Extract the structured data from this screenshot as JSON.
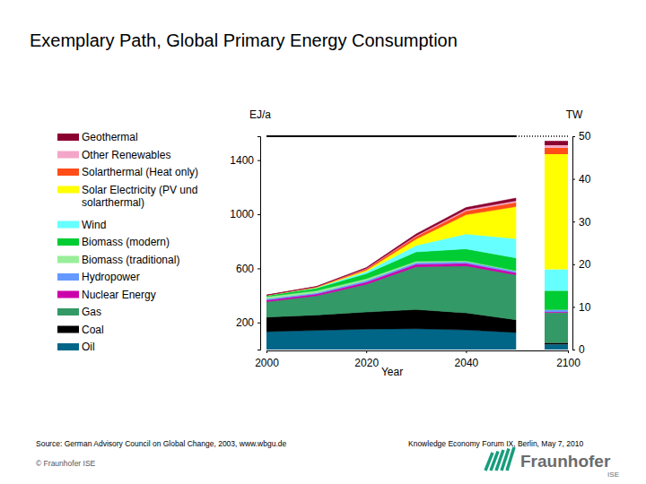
{
  "chart_data": {
    "type": "area",
    "stacked": true,
    "title": "Exemplary Path, Global Primary Energy Consumption",
    "y_label": "EJ/a",
    "y2_label": "TW",
    "x_label": "Year",
    "legend": "left",
    "grid": false,
    "x": [
      2000,
      2010,
      2020,
      2030,
      2040,
      2050,
      2100
    ],
    "xlim": [
      2000,
      2100
    ],
    "xticks": [
      2000,
      2020,
      2040,
      2100
    ],
    "ylim": [
      0,
      1576.8
    ],
    "yticks": [
      200,
      600,
      1000,
      1400
    ],
    "y2lim": [
      0,
      50
    ],
    "y2ticks": [
      0,
      10,
      20,
      30,
      40,
      50
    ],
    "series": [
      {
        "name": "Oil",
        "color": "#006688",
        "axis": "y2",
        "values": [
          4.2,
          4.5,
          4.8,
          4.9,
          4.6,
          4.0,
          1.2
        ]
      },
      {
        "name": "Coal",
        "color": "#000000",
        "axis": "y2",
        "values": [
          3.4,
          3.6,
          4.0,
          4.5,
          4.0,
          3.0,
          0.4
        ]
      },
      {
        "name": "Gas",
        "color": "#339966",
        "axis": "y2",
        "values": [
          3.6,
          4.5,
          6.5,
          10.0,
          11.0,
          10.5,
          7.0
        ]
      },
      {
        "name": "Nuclear Energy",
        "color": "#cc00aa",
        "axis": "y2",
        "values": [
          0.4,
          0.4,
          0.5,
          0.6,
          0.6,
          0.5,
          0.2
        ]
      },
      {
        "name": "Hydropower",
        "color": "#6699ff",
        "axis": "y2",
        "values": [
          0.3,
          0.3,
          0.4,
          0.4,
          0.4,
          0.4,
          0.5
        ]
      },
      {
        "name": "Biomass (traditional)",
        "color": "#99ee99",
        "axis": "y2",
        "values": [
          0.5,
          0.5,
          0.4,
          0.3,
          0.2,
          0.1,
          0
        ]
      },
      {
        "name": "Biomass (modern)",
        "color": "#00cc33",
        "axis": "y2",
        "values": [
          0.3,
          0.6,
          1.2,
          2.2,
          2.8,
          3.0,
          4.5
        ]
      },
      {
        "name": "Wind",
        "color": "#66ffff",
        "axis": "y2",
        "values": [
          0,
          0.1,
          0.5,
          1.5,
          3.5,
          4.5,
          5.0
        ]
      },
      {
        "name": "Solar Electricity (PV und solarthermal)",
        "color": "#ffff00",
        "axis": "y2",
        "values": [
          0,
          0.1,
          0.3,
          1.5,
          4.5,
          7.5,
          27.0
        ]
      },
      {
        "name": "Solarthermal (Heat only)",
        "color": "#ff4d1a",
        "axis": "y2",
        "values": [
          0,
          0.1,
          0.3,
          0.6,
          0.9,
          1.0,
          1.5
        ]
      },
      {
        "name": "Other Renewables",
        "color": "#f4a6c8",
        "axis": "y2",
        "values": [
          0,
          0,
          0.1,
          0.2,
          0.3,
          0.4,
          0.6
        ]
      },
      {
        "name": "Geothermal",
        "color": "#8b0030",
        "axis": "y2",
        "values": [
          0.1,
          0.1,
          0.2,
          0.4,
          0.5,
          0.6,
          1.0
        ]
      }
    ],
    "reference_line": {
      "value": 50,
      "axis": "y2"
    }
  },
  "footer": {
    "source": "Source: German Advisory Council on Global Change, 2003, www.wbgu.de",
    "event": "Knowledge Economy Forum IX, Berlin, May 7, 2010",
    "copyright": "© Fraunhofer ISE",
    "logo": "Fraunhofer",
    "logo_sub": "ISE"
  }
}
